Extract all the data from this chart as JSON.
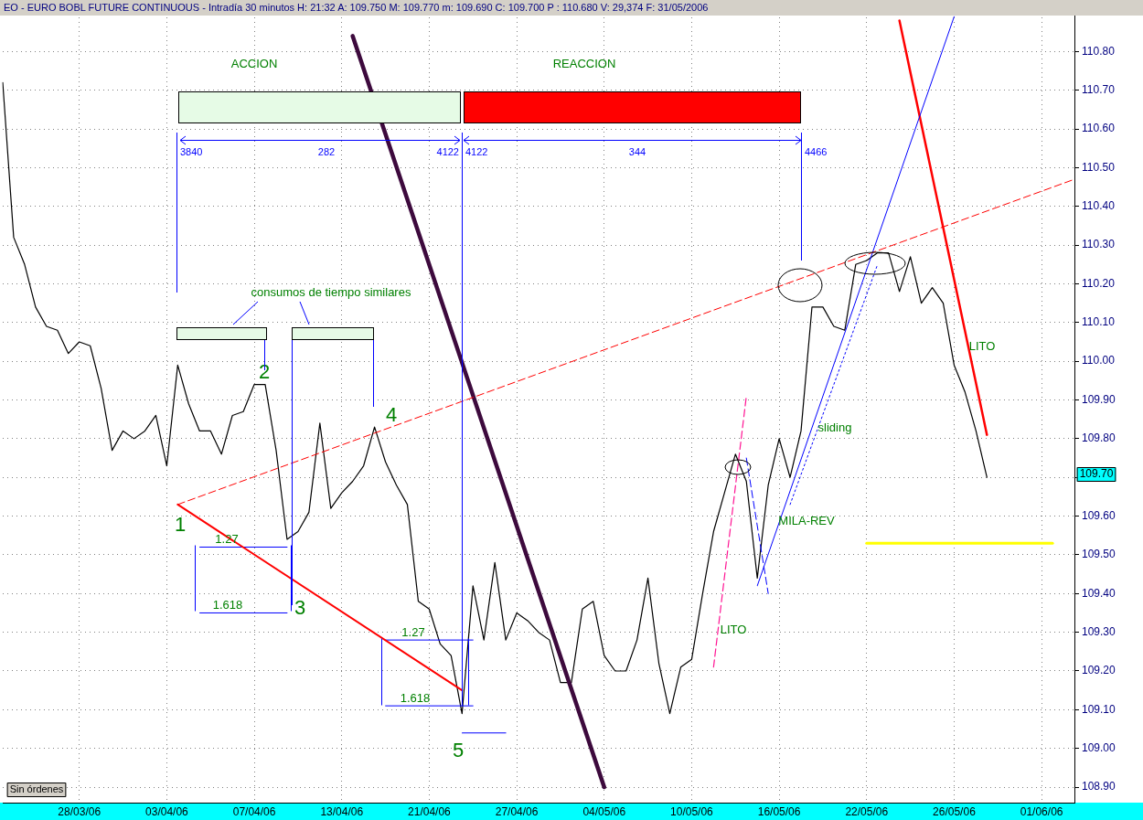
{
  "chart_data": {
    "type": "line",
    "title": "EO - EURO BOBL FUTURE CONTINUOUS - Intradía 30 minutos H: 21:32 A: 109.750 M: 109.770 m: 109.690 C: 109.700 P : 110.680 V: 29,374 F: 31/05/2006",
    "categories": [
      null,
      null,
      null,
      null,
      null,
      null,
      null,
      "28/03/06",
      null,
      null,
      null,
      null,
      null,
      null,
      null,
      "03/04/06",
      null,
      null,
      null,
      null,
      null,
      null,
      null,
      "07/04/06",
      null,
      null,
      null,
      null,
      null,
      null,
      null,
      "13/04/06",
      null,
      null,
      null,
      null,
      null,
      null,
      null,
      "21/04/06",
      null,
      null,
      null,
      null,
      null,
      null,
      null,
      "27/04/06",
      null,
      null,
      null,
      null,
      null,
      null,
      null,
      "04/05/06",
      null,
      null,
      null,
      null,
      null,
      null,
      null,
      "10/05/06",
      null,
      null,
      null,
      null,
      null,
      null,
      null,
      "16/05/06",
      null,
      null,
      null,
      null,
      null,
      null,
      null,
      "22/05/06",
      null,
      null,
      null,
      null,
      null,
      null,
      null,
      "26/05/06",
      null,
      null,
      null,
      null,
      null,
      null,
      null,
      "01/06/06",
      null,
      null,
      null
    ],
    "series": [
      {
        "color": "#000000",
        "values": [
          110.72,
          110.32,
          110.25,
          110.14,
          110.09,
          110.08,
          110.02,
          110.05,
          110.04,
          109.93,
          109.77,
          109.82,
          109.8,
          109.82,
          109.86,
          109.73,
          109.99,
          109.89,
          109.82,
          109.82,
          109.76,
          109.86,
          109.87,
          109.94,
          109.94,
          109.77,
          109.54,
          109.56,
          109.61,
          109.84,
          109.62,
          109.66,
          109.69,
          109.73,
          109.83,
          109.74,
          109.68,
          109.63,
          109.38,
          109.36,
          109.27,
          109.24,
          109.09,
          109.42,
          109.28,
          109.48,
          109.28,
          109.35,
          109.33,
          109.3,
          109.28,
          109.17,
          109.17,
          109.36,
          109.38,
          109.24,
          109.2,
          109.2,
          109.28,
          109.44,
          109.22,
          109.09,
          109.21,
          109.23,
          109.4,
          109.56,
          109.66,
          109.76,
          109.69,
          109.44,
          109.68,
          109.8,
          109.7,
          109.82,
          110.14,
          110.14,
          110.09,
          110.08,
          110.25,
          110.26,
          110.28,
          110.28,
          110.18,
          110.27,
          110.15,
          110.19,
          110.15,
          109.99,
          109.92,
          109.82,
          109.7,
          null,
          null,
          null,
          null,
          null,
          null,
          null,
          null
        ]
      },
      {
        "color": "#ff0000",
        "values": [
          null,
          null,
          null,
          null,
          null,
          null,
          null,
          null,
          null,
          null,
          null,
          null,
          null,
          null,
          null,
          null,
          109.63,
          null,
          null,
          null,
          null,
          null,
          null,
          null,
          null,
          null,
          null,
          null,
          null,
          null,
          null,
          null,
          null,
          null,
          null,
          null,
          null,
          null,
          null,
          null,
          null,
          null,
          109.15,
          null,
          null,
          null,
          null,
          null,
          null,
          null,
          null,
          null,
          null,
          null,
          null,
          null,
          null,
          null,
          null,
          null,
          null,
          null,
          null,
          null,
          null,
          null,
          null,
          null,
          null,
          null,
          null,
          null,
          null,
          null,
          null,
          null,
          null,
          null,
          null,
          null,
          null,
          null,
          null,
          null,
          null,
          null,
          null,
          null,
          null,
          null,
          null,
          null,
          null,
          null,
          null,
          null,
          null,
          null,
          null
        ]
      },
      {
        "color": "#ff0000",
        "line_style": "dashed",
        "values": [
          null,
          null,
          null,
          null,
          null,
          null,
          null,
          null,
          null,
          null,
          null,
          null,
          null,
          null,
          null,
          null,
          109.63,
          null,
          null,
          null,
          null,
          null,
          null,
          null,
          null,
          null,
          null,
          null,
          null,
          null,
          null,
          null,
          null,
          null,
          null,
          null,
          null,
          null,
          null,
          null,
          null,
          null,
          null,
          null,
          null,
          null,
          null,
          null,
          null,
          null,
          null,
          null,
          null,
          null,
          null,
          null,
          null,
          null,
          null,
          null,
          null,
          null,
          null,
          null,
          null,
          null,
          null,
          null,
          null,
          null,
          null,
          null,
          null,
          null,
          null,
          null,
          null,
          null,
          null,
          null,
          null,
          null,
          null,
          null,
          null,
          null,
          null,
          null,
          null,
          null,
          null,
          null,
          null,
          null,
          null,
          null,
          null,
          null,
          110.47
        ]
      },
      {
        "color": "#3d0a3d",
        "values": [
          null,
          null,
          null,
          null,
          null,
          null,
          null,
          null,
          null,
          null,
          null,
          null,
          null,
          null,
          null,
          null,
          null,
          null,
          null,
          null,
          null,
          null,
          null,
          null,
          null,
          null,
          null,
          null,
          null,
          null,
          null,
          null,
          110.84,
          null,
          null,
          null,
          null,
          null,
          null,
          null,
          null,
          null,
          null,
          null,
          null,
          null,
          null,
          null,
          null,
          null,
          null,
          null,
          null,
          null,
          null,
          108.9,
          null,
          null,
          null,
          null,
          null,
          null,
          null,
          null,
          null,
          null,
          null,
          null,
          null,
          null,
          null,
          null,
          null,
          null,
          null,
          null,
          null,
          null,
          null,
          null,
          null,
          null,
          null,
          null,
          null,
          null,
          null,
          null,
          null,
          null,
          null,
          null,
          null,
          null,
          null,
          null,
          null,
          null,
          null
        ]
      },
      {
        "color": "#0000ff",
        "values": [
          null,
          null,
          null,
          null,
          null,
          null,
          null,
          null,
          null,
          null,
          null,
          null,
          null,
          null,
          null,
          null,
          null,
          null,
          null,
          null,
          null,
          null,
          null,
          null,
          null,
          null,
          null,
          null,
          null,
          null,
          null,
          null,
          null,
          null,
          null,
          null,
          null,
          null,
          null,
          null,
          null,
          null,
          null,
          null,
          null,
          null,
          null,
          null,
          null,
          null,
          null,
          null,
          null,
          null,
          null,
          null,
          null,
          null,
          null,
          null,
          null,
          null,
          null,
          null,
          null,
          null,
          null,
          null,
          null,
          109.42,
          null,
          null,
          null,
          null,
          null,
          null,
          null,
          null,
          null,
          null,
          null,
          null,
          null,
          null,
          null,
          null,
          null,
          110.89,
          null,
          null,
          null,
          null,
          null,
          null,
          null,
          null,
          null,
          null,
          null
        ]
      },
      {
        "color": "#0000ff",
        "line_style": "dotted",
        "values": [
          null,
          null,
          null,
          null,
          null,
          null,
          null,
          null,
          null,
          null,
          null,
          null,
          null,
          null,
          null,
          null,
          null,
          null,
          null,
          null,
          null,
          null,
          null,
          null,
          null,
          null,
          null,
          null,
          null,
          null,
          null,
          null,
          null,
          null,
          null,
          null,
          null,
          null,
          null,
          null,
          null,
          null,
          null,
          null,
          null,
          null,
          null,
          null,
          null,
          null,
          null,
          null,
          null,
          null,
          null,
          null,
          null,
          null,
          null,
          null,
          null,
          null,
          null,
          null,
          null,
          null,
          null,
          null,
          null,
          null,
          null,
          null,
          109.63,
          null,
          null,
          null,
          null,
          null,
          null,
          null,
          110.25,
          null,
          null,
          null,
          null,
          null,
          null,
          null,
          null,
          null,
          null,
          null,
          null,
          null,
          null,
          null,
          null,
          null,
          null
        ]
      },
      {
        "color": "#0000ff",
        "line_style": "dashed",
        "values": [
          null,
          null,
          null,
          null,
          null,
          null,
          null,
          null,
          null,
          null,
          null,
          null,
          null,
          null,
          null,
          null,
          null,
          null,
          null,
          null,
          null,
          null,
          null,
          null,
          null,
          null,
          null,
          null,
          null,
          null,
          null,
          null,
          null,
          null,
          null,
          null,
          null,
          null,
          null,
          null,
          null,
          null,
          null,
          null,
          null,
          null,
          null,
          null,
          null,
          null,
          null,
          null,
          null,
          null,
          null,
          null,
          null,
          null,
          null,
          null,
          null,
          null,
          null,
          null,
          null,
          null,
          null,
          null,
          109.75,
          null,
          109.4,
          null,
          null,
          null,
          null,
          null,
          null,
          null,
          null,
          null,
          null,
          null,
          null,
          null,
          null,
          null,
          null,
          null,
          null,
          null,
          null,
          null,
          null,
          null,
          null,
          null,
          null,
          null,
          null
        ]
      },
      {
        "color": "#ff1493",
        "line_style": "dashed",
        "values": [
          null,
          null,
          null,
          null,
          null,
          null,
          null,
          null,
          null,
          null,
          null,
          null,
          null,
          null,
          null,
          null,
          null,
          null,
          null,
          null,
          null,
          null,
          null,
          null,
          null,
          null,
          null,
          null,
          null,
          null,
          null,
          null,
          null,
          null,
          null,
          null,
          null,
          null,
          null,
          null,
          null,
          null,
          null,
          null,
          null,
          null,
          null,
          null,
          null,
          null,
          null,
          null,
          null,
          null,
          null,
          null,
          null,
          null,
          null,
          null,
          null,
          null,
          null,
          null,
          null,
          109.21,
          null,
          null,
          109.91,
          null,
          null,
          null,
          null,
          null,
          null,
          null,
          null,
          null,
          null,
          null,
          null,
          null,
          null,
          null,
          null,
          null,
          null,
          null,
          null,
          null,
          null,
          null,
          null,
          null,
          null,
          null,
          null,
          null,
          null
        ]
      },
      {
        "color": "#ff0000",
        "values": [
          null,
          null,
          null,
          null,
          null,
          null,
          null,
          null,
          null,
          null,
          null,
          null,
          null,
          null,
          null,
          null,
          null,
          null,
          null,
          null,
          null,
          null,
          null,
          null,
          null,
          null,
          null,
          null,
          null,
          null,
          null,
          null,
          null,
          null,
          null,
          null,
          null,
          null,
          null,
          null,
          null,
          null,
          null,
          null,
          null,
          null,
          null,
          null,
          null,
          null,
          null,
          null,
          null,
          null,
          null,
          null,
          null,
          null,
          null,
          null,
          null,
          null,
          null,
          null,
          null,
          null,
          null,
          null,
          null,
          null,
          null,
          null,
          null,
          null,
          null,
          null,
          null,
          null,
          null,
          null,
          null,
          null,
          110.88,
          null,
          null,
          null,
          null,
          null,
          null,
          null,
          109.81,
          null,
          null,
          null,
          null,
          null,
          null,
          null,
          null
        ]
      },
      {
        "color": "#ffff00",
        "values": [
          null,
          null,
          null,
          null,
          null,
          null,
          null,
          null,
          null,
          null,
          null,
          null,
          null,
          null,
          null,
          null,
          null,
          null,
          null,
          null,
          null,
          null,
          null,
          null,
          null,
          null,
          null,
          null,
          null,
          null,
          null,
          null,
          null,
          null,
          null,
          null,
          null,
          null,
          null,
          null,
          null,
          null,
          null,
          null,
          null,
          null,
          null,
          null,
          null,
          null,
          null,
          null,
          null,
          null,
          null,
          null,
          null,
          null,
          null,
          null,
          null,
          null,
          null,
          null,
          null,
          null,
          null,
          null,
          null,
          null,
          null,
          null,
          null,
          null,
          null,
          null,
          null,
          null,
          null,
          109.53,
          null,
          null,
          null,
          null,
          null,
          null,
          null,
          null,
          null,
          null,
          null,
          null,
          null,
          null,
          null,
          null,
          109.53,
          null,
          null
        ]
      },
      {
        "color": "#0000ff",
        "values": [
          null,
          null,
          null,
          null,
          null,
          null,
          null,
          null,
          null,
          null,
          null,
          null,
          null,
          null,
          null,
          null,
          null,
          null,
          null,
          null,
          null,
          null,
          null,
          null,
          null,
          null,
          null,
          null,
          null,
          null,
          null,
          null,
          null,
          null,
          null,
          null,
          null,
          null,
          null,
          null,
          null,
          null,
          109.04,
          null,
          null,
          null,
          109.04,
          null,
          null,
          null,
          null,
          null,
          null,
          null,
          null,
          null,
          null,
          null,
          null,
          null,
          null,
          null,
          null,
          null,
          null,
          null,
          null,
          null,
          null,
          null,
          null,
          null,
          null,
          null,
          null,
          null,
          null,
          null,
          null,
          null,
          null,
          null,
          null,
          null,
          null,
          null,
          null,
          null,
          null,
          null,
          null,
          null,
          null,
          null,
          null,
          null,
          null,
          null,
          null
        ]
      },
      {
        "color": "#0000ff",
        "values": [
          null,
          null,
          null,
          null,
          null,
          null,
          null,
          null,
          null,
          null,
          null,
          null,
          null,
          null,
          null,
          null,
          null,
          null,
          109.35,
          null,
          null,
          null,
          null,
          null,
          null,
          null,
          109.35,
          null,
          null,
          null,
          null,
          null,
          null,
          null,
          null,
          null,
          null,
          null,
          null,
          null,
          null,
          null,
          null,
          null,
          null,
          null,
          null,
          null,
          null,
          null,
          null,
          null,
          null,
          null,
          null,
          null,
          null,
          null,
          null,
          null,
          null,
          null,
          null,
          null,
          null,
          null,
          null,
          null,
          null,
          null,
          null,
          null,
          null,
          null,
          null,
          null,
          null,
          null,
          null,
          null,
          null,
          null,
          null,
          null,
          null,
          null,
          null,
          null,
          null,
          null,
          null,
          null,
          null,
          null,
          null,
          null,
          null,
          null,
          null
        ]
      },
      {
        "color": "#0000ff",
        "values": [
          null,
          null,
          null,
          null,
          null,
          null,
          null,
          null,
          null,
          null,
          null,
          null,
          null,
          null,
          null,
          null,
          null,
          null,
          null,
          null,
          null,
          null,
          null,
          null,
          null,
          null,
          null,
          null,
          null,
          null,
          null,
          null,
          null,
          null,
          null,
          109.11,
          null,
          null,
          null,
          null,
          null,
          null,
          null,
          109.11,
          null,
          null,
          null,
          null,
          null,
          null,
          null,
          null,
          null,
          null,
          null,
          null,
          null,
          null,
          null,
          null,
          null,
          null,
          null,
          null,
          null,
          null,
          null,
          null,
          null,
          null,
          null,
          null,
          null,
          null,
          null,
          null,
          null,
          null,
          null,
          null,
          null,
          null,
          null,
          null,
          null,
          null,
          null,
          null,
          null,
          null,
          null,
          null,
          null,
          null,
          null,
          null,
          null,
          null,
          null
        ]
      },
      {
        "color": "#0000ff",
        "values": [
          null,
          null,
          null,
          null,
          null,
          null,
          null,
          null,
          null,
          null,
          null,
          null,
          null,
          null,
          null,
          null,
          null,
          null,
          109.52,
          null,
          null,
          null,
          null,
          null,
          null,
          null,
          109.52,
          null,
          null,
          null,
          null,
          null,
          null,
          null,
          null,
          null,
          null,
          null,
          null,
          null,
          null,
          null,
          null,
          null,
          null,
          null,
          null,
          null,
          null,
          null,
          null,
          null,
          null,
          null,
          null,
          null,
          null,
          null,
          null,
          null,
          null,
          null,
          null,
          null,
          null,
          null,
          null,
          null,
          null,
          null,
          null,
          null,
          null,
          null,
          null,
          null,
          null,
          null,
          null,
          null,
          null,
          null,
          null,
          null,
          null,
          null,
          null,
          null,
          null,
          null,
          null,
          null,
          null,
          null,
          null,
          null,
          null,
          null,
          null
        ]
      },
      {
        "color": "#0000ff",
        "values": [
          null,
          null,
          null,
          null,
          null,
          null,
          null,
          null,
          null,
          null,
          null,
          null,
          null,
          null,
          null,
          null,
          null,
          null,
          null,
          null,
          null,
          null,
          null,
          null,
          null,
          null,
          null,
          null,
          null,
          null,
          null,
          null,
          null,
          null,
          null,
          109.28,
          null,
          null,
          null,
          null,
          null,
          null,
          null,
          109.28,
          null,
          null,
          null,
          null,
          null,
          null,
          null,
          null,
          null,
          null,
          null,
          null,
          null,
          null,
          null,
          null,
          null,
          null,
          null,
          null,
          null,
          null,
          null,
          null,
          null,
          null,
          null,
          null,
          null,
          null,
          null,
          null,
          null,
          null,
          null,
          null,
          null,
          null,
          null,
          null,
          null,
          null,
          null,
          null,
          null,
          null,
          null,
          null,
          null,
          null,
          null,
          null,
          null,
          null,
          null
        ]
      }
    ],
    "ylim": [
      108.86,
      110.9
    ],
    "yticks": [
      {
        "value": 108.9,
        "label": "108.90"
      },
      {
        "value": 109,
        "label": "109.00"
      },
      {
        "value": 109.1,
        "label": "109.10"
      },
      {
        "value": 109.2,
        "label": "109.20"
      },
      {
        "value": 109.3,
        "label": "109.30"
      },
      {
        "value": 109.4,
        "label": "109.40"
      },
      {
        "value": 109.5,
        "label": "109.50"
      },
      {
        "value": 109.6,
        "label": "109.60"
      },
      {
        "value": 109.7,
        "label": null
      },
      {
        "value": 109.8,
        "label": "109.80"
      },
      {
        "value": 109.9,
        "label": "109.90"
      },
      {
        "value": 110,
        "label": "110.00"
      },
      {
        "value": 110.1,
        "label": "110.10"
      },
      {
        "value": 110.2,
        "label": "110.20"
      },
      {
        "value": 110.3,
        "label": "110.30"
      },
      {
        "value": 110.4,
        "label": "110.40"
      },
      {
        "value": 110.5,
        "label": "110.50"
      },
      {
        "value": 110.6,
        "label": "110.60"
      },
      {
        "value": 110.7,
        "label": "110.70"
      },
      {
        "value": 110.8,
        "label": "110.80"
      }
    ],
    "grid": true,
    "annotations": [
      "ACCION",
      "REACCION",
      "3840",
      "282",
      "4122",
      "4122",
      "344",
      "4466",
      "consumos de tiempo similares",
      "1",
      "2",
      "3",
      "4",
      "5",
      {
        "text": "1.27",
        "y": 109.52
      },
      {
        "text": "1.618",
        "y": 109.35
      },
      {
        "text": "1.27",
        "y": 109.28
      },
      {
        "text": "1.618",
        "y": 109.11
      },
      "LITO",
      "LITO",
      "sliding",
      "MILA-REV",
      "109.70",
      "Sin órdenes"
    ]
  }
}
